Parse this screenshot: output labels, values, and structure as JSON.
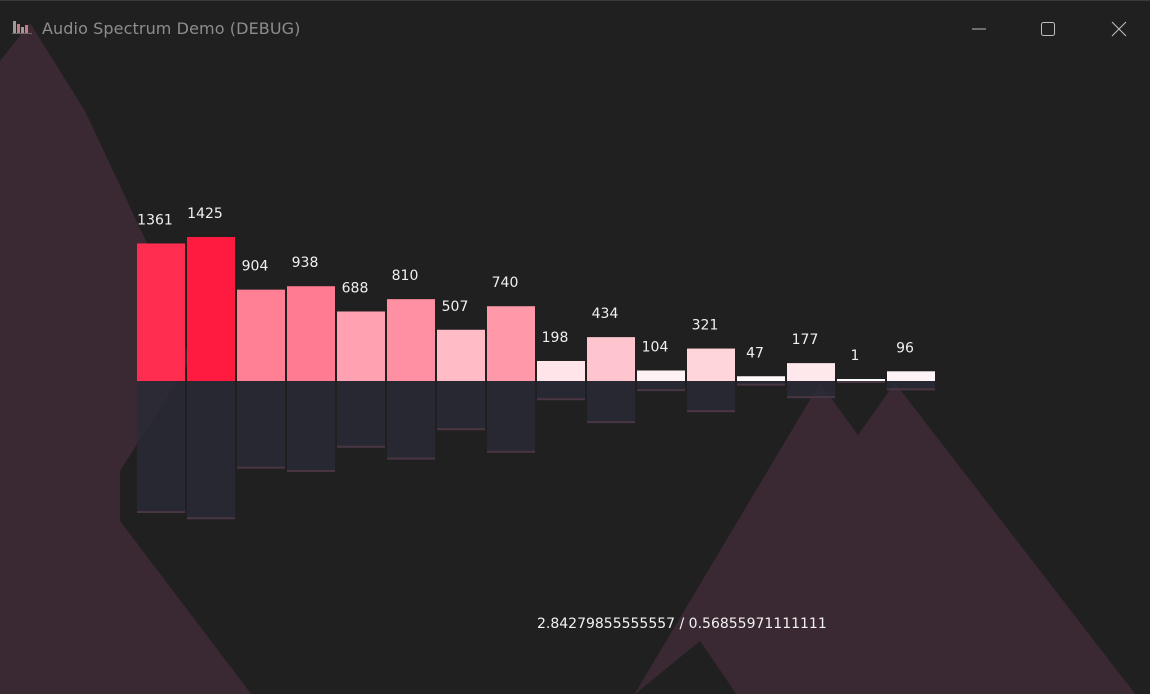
{
  "window": {
    "title": "Audio Spectrum Demo (DEBUG)",
    "controls": [
      "minimize-icon",
      "maximize-icon",
      "close-icon"
    ]
  },
  "colors": {
    "background": "#202020",
    "mountain": "#3a2833",
    "reflection": "#2a2a36",
    "bar_high": "#ff1a40",
    "bar_low": "#ffffff",
    "label": "#f0f0f0"
  },
  "spectrum": {
    "values": [
      1361,
      1425,
      904,
      938,
      688,
      810,
      507,
      740,
      198,
      434,
      104,
      321,
      47,
      177,
      1,
      96
    ],
    "labels": [
      "1361",
      "1425",
      "904",
      "938",
      "688",
      "810",
      "507",
      "740",
      "198",
      "434",
      "104",
      "321",
      "47",
      "177",
      "1",
      "96"
    ],
    "max": 1425
  },
  "status": {
    "readout": "2.84279855555557 / 0.56855971111111"
  }
}
